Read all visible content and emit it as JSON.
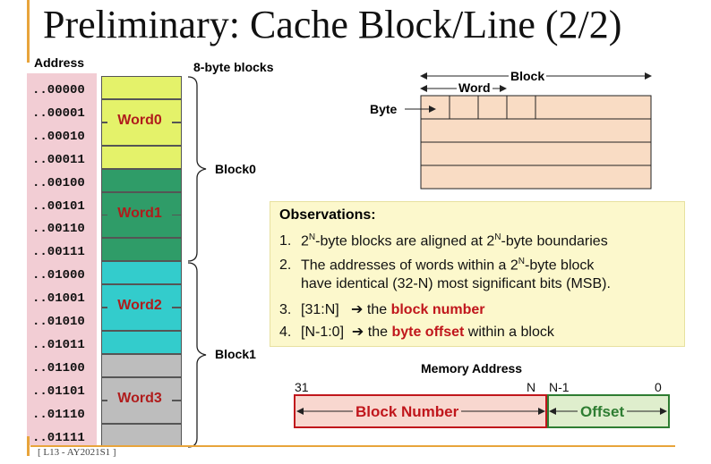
{
  "title": "Preliminary: Cache Block/Line (2/2)",
  "footer": "[ L13 - AY2021S1 ]",
  "address_header": "Address",
  "addresses": [
    "..00000",
    "..00001",
    "..00010",
    "..00011",
    "..00100",
    "..00101",
    "..00110",
    "..00111",
    "..01000",
    "..01001",
    "..01010",
    "..01011",
    "..01100",
    "..01101",
    "..01110",
    "..01111"
  ],
  "blocks_header": "8-byte blocks",
  "words": [
    "Word0",
    "Word1",
    "Word2",
    "Word3"
  ],
  "word_colors": [
    "#e4f26a",
    "#2f9c68",
    "#33cccc",
    "#bdbdbd"
  ],
  "block_labels": [
    "Block0",
    "Block1"
  ],
  "diagram": {
    "block": "Block",
    "word": "Word",
    "byte": "Byte"
  },
  "observations": {
    "title": "Observations:",
    "items": [
      {
        "num": "1.",
        "line1_a": "2",
        "line1_b": "N",
        "line1_c": "-byte blocks are aligned at 2",
        "line1_d": "N",
        "line1_e": "-byte boundaries"
      },
      {
        "num": "2.",
        "line1_a": "The addresses of words within a 2",
        "line1_b": "N",
        "line1_c": "-byte block",
        "line2": "have identical (32-N) most significant bits (MSB)."
      },
      {
        "num": "3.",
        "pre": "[31:N]",
        "arrow": "➔",
        "mid": "the ",
        "hl": "block number",
        "post": ""
      },
      {
        "num": "4.",
        "pre": "[N-1:0]",
        "arrow": "➔",
        "mid": "the ",
        "hl": "byte offset",
        "post": " within a block"
      }
    ]
  },
  "memory_address": {
    "title": "Memory Address",
    "bits": [
      "31",
      "N",
      "N-1",
      "0"
    ],
    "block_number": "Block Number",
    "offset": "Offset"
  }
}
